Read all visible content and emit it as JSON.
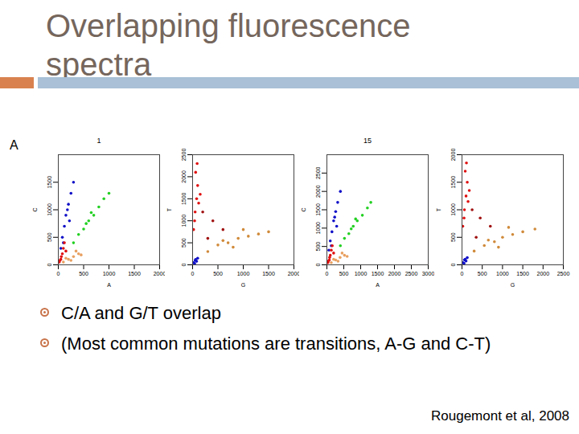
{
  "title": "Overlapping fluorescence spectra",
  "panel_label": "A",
  "bullets": [
    "C/A and G/T overlap",
    "(Most common mutations are transitions, A-G and C-T)"
  ],
  "citation": "Rougemont et al, 2008",
  "chart_data": [
    {
      "type": "scatter",
      "title": "1",
      "x_label": "A",
      "y_label": "C",
      "xlim": [
        0,
        2000
      ],
      "xticks": [
        0,
        500,
        1000,
        1500,
        2000
      ],
      "ylim": [
        0,
        2000
      ],
      "yticks": [
        0,
        500,
        1000,
        1500
      ],
      "grid": false,
      "series": [
        {
          "color": "#e8a060",
          "x": [
            100,
            200,
            300,
            400,
            250,
            350,
            150,
            450
          ],
          "values": [
            50,
            100,
            150,
            200,
            80,
            250,
            120,
            180
          ]
        },
        {
          "color": "#1010c8",
          "x": [
            50,
            80,
            120,
            150,
            200,
            250,
            300,
            180,
            100,
            220
          ],
          "values": [
            300,
            500,
            700,
            900,
            1100,
            1300,
            1500,
            1000,
            400,
            800
          ]
        },
        {
          "color": "#22d022",
          "x": [
            300,
            400,
            500,
            600,
            700,
            800,
            900,
            550,
            650,
            1000
          ],
          "values": [
            400,
            550,
            650,
            800,
            900,
            1050,
            1200,
            750,
            950,
            1300
          ]
        },
        {
          "color": "#e01010",
          "x": [
            20,
            50,
            80,
            100,
            150,
            60,
            120,
            30
          ],
          "values": [
            50,
            100,
            200,
            300,
            250,
            150,
            400,
            80
          ]
        }
      ]
    },
    {
      "type": "scatter",
      "x_label": "G",
      "y_label": "T",
      "xlim": [
        0,
        2000
      ],
      "xticks": [
        0,
        500,
        1000,
        1500,
        2000
      ],
      "ylim": [
        0,
        2500
      ],
      "yticks": [
        0,
        500,
        1000,
        1500,
        2000,
        2500
      ],
      "grid": false,
      "series": [
        {
          "color": "#d08a3a",
          "x": [
            300,
            500,
            700,
            900,
            1100,
            1300,
            1500,
            800,
            1000,
            600
          ],
          "values": [
            300,
            450,
            500,
            600,
            650,
            700,
            750,
            400,
            800,
            550
          ]
        },
        {
          "color": "#a01010",
          "x": [
            200,
            400,
            600,
            300
          ],
          "values": [
            1200,
            1000,
            800,
            600
          ]
        },
        {
          "color": "#e01010",
          "x": [
            20,
            50,
            80,
            100,
            60,
            120,
            40,
            90,
            150
          ],
          "values": [
            800,
            1200,
            1500,
            1800,
            2100,
            1400,
            1000,
            2300,
            1600
          ]
        },
        {
          "color": "#1010c8",
          "x": [
            20,
            50,
            80,
            100,
            60,
            40
          ],
          "values": [
            50,
            100,
            80,
            150,
            120,
            30
          ]
        }
      ]
    },
    {
      "type": "scatter",
      "title": "15",
      "x_label": "A",
      "y_label": "C",
      "xlim": [
        0,
        3000
      ],
      "xticks": [
        0,
        500,
        1000,
        1500,
        2000,
        2500,
        3000
      ],
      "ylim": [
        0,
        3000
      ],
      "yticks": [
        0,
        500,
        1000,
        1500,
        2000,
        2500
      ],
      "grid": false,
      "series": [
        {
          "color": "#e8a060",
          "x": [
            130,
            260,
            390,
            520,
            330,
            450,
            200,
            600
          ],
          "values": [
            60,
            130,
            200,
            260,
            100,
            320,
            150,
            230
          ]
        },
        {
          "color": "#1010c8",
          "x": [
            60,
            100,
            150,
            200,
            260,
            320,
            400,
            230,
            130,
            290
          ],
          "values": [
            400,
            650,
            900,
            1200,
            1450,
            1700,
            2000,
            1300,
            520,
            1050
          ]
        },
        {
          "color": "#22d022",
          "x": [
            400,
            520,
            650,
            780,
            900,
            1050,
            1200,
            720,
            850,
            1300
          ],
          "values": [
            520,
            720,
            850,
            1050,
            1200,
            1350,
            1550,
            980,
            1250,
            1700
          ]
        },
        {
          "color": "#e01010",
          "x": [
            30,
            70,
            100,
            130,
            200,
            80,
            160,
            40
          ],
          "values": [
            60,
            130,
            260,
            400,
            320,
            200,
            520,
            100
          ]
        }
      ]
    },
    {
      "type": "scatter",
      "x_label": "G",
      "y_label": "T",
      "xlim": [
        0,
        2500
      ],
      "xticks": [
        0,
        500,
        1000,
        1500,
        2000,
        2500
      ],
      "ylim": [
        0,
        2000
      ],
      "yticks": [
        0,
        500,
        1000,
        1500,
        2000
      ],
      "grid": false,
      "series": [
        {
          "color": "#d08a3a",
          "x": [
            300,
            550,
            800,
            1000,
            1250,
            1500,
            1800,
            900,
            1150,
            650
          ],
          "values": [
            250,
            350,
            420,
            500,
            550,
            600,
            650,
            320,
            680,
            450
          ]
        },
        {
          "color": "#a01010",
          "x": [
            250,
            450,
            700,
            350
          ],
          "values": [
            1000,
            850,
            700,
            500
          ]
        },
        {
          "color": "#e01010",
          "x": [
            20,
            60,
            100,
            130,
            80,
            150,
            50,
            110,
            180
          ],
          "values": [
            700,
            1000,
            1250,
            1500,
            1700,
            1150,
            850,
            1850,
            1350
          ]
        },
        {
          "color": "#1010c8",
          "x": [
            20,
            60,
            100,
            130,
            80,
            50
          ],
          "values": [
            40,
            90,
            70,
            130,
            100,
            30
          ]
        }
      ]
    }
  ]
}
